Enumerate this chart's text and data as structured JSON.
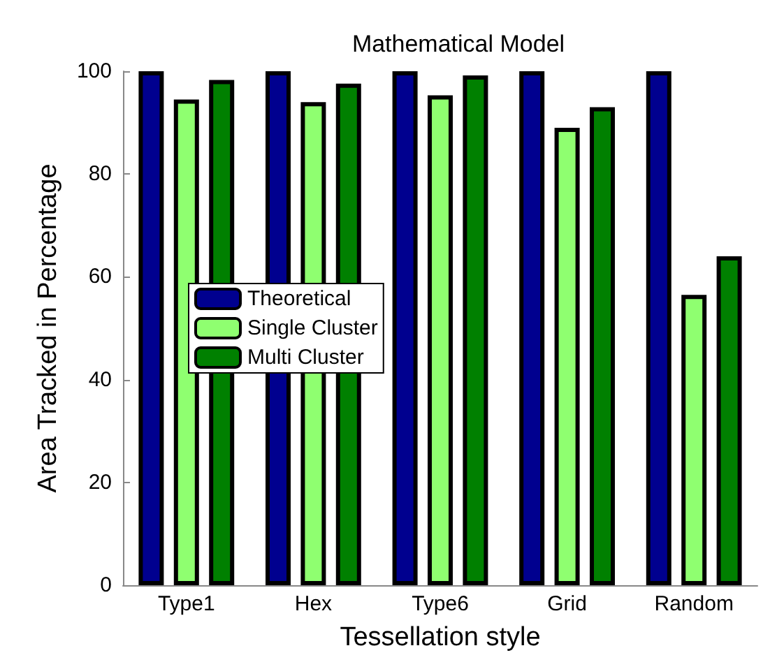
{
  "chart_data": {
    "type": "bar",
    "title": "Mathematical Model",
    "xlabel": "Tessellation style",
    "ylabel": "Area Tracked in Percentage",
    "categories": [
      "Type1",
      "Hex",
      "Type6",
      "Grid",
      "Random"
    ],
    "series": [
      {
        "name": "Theoretical",
        "color": "#00008f",
        "values": [
          100,
          100,
          100,
          100,
          100
        ]
      },
      {
        "name": "Single Cluster",
        "color": "#8fff70",
        "values": [
          94.5,
          94,
          95.3,
          89,
          56.5
        ]
      },
      {
        "name": "Multi Cluster",
        "color": "#008000",
        "values": [
          98.3,
          97.6,
          99.2,
          93,
          64
        ]
      }
    ],
    "ylim": [
      0,
      100
    ],
    "yticks": [
      0,
      20,
      40,
      60,
      80,
      100
    ],
    "grid": false,
    "legend": "left"
  }
}
